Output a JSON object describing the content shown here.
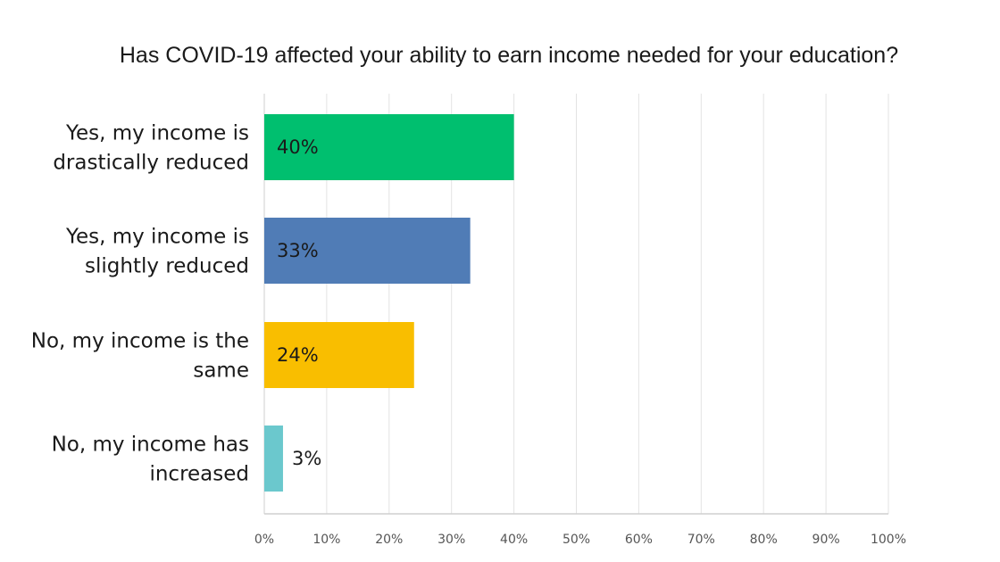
{
  "chart_data": {
    "type": "bar",
    "orientation": "horizontal",
    "title": "Has COVID-19 affected your ability to earn income needed for your education?",
    "categories": [
      [
        "Yes, my income is",
        "drastically reduced"
      ],
      [
        "Yes, my income is",
        "slightly reduced"
      ],
      [
        "No, my income is the",
        "same"
      ],
      [
        "No, my income has",
        "increased"
      ]
    ],
    "values": [
      40,
      33,
      24,
      3
    ],
    "value_labels": [
      "40%",
      "33%",
      "24%",
      "3%"
    ],
    "colors": [
      "#00bf6f",
      "#507cb6",
      "#f9be00",
      "#6bc8cd"
    ],
    "xlim": [
      0,
      100
    ],
    "xticks": [
      0,
      10,
      20,
      30,
      40,
      50,
      60,
      70,
      80,
      90,
      100
    ],
    "xtick_labels": [
      "0%",
      "10%",
      "20%",
      "30%",
      "40%",
      "50%",
      "60%",
      "70%",
      "80%",
      "90%",
      "100%"
    ],
    "xlabel": "",
    "ylabel": "",
    "grid": "vertical"
  }
}
